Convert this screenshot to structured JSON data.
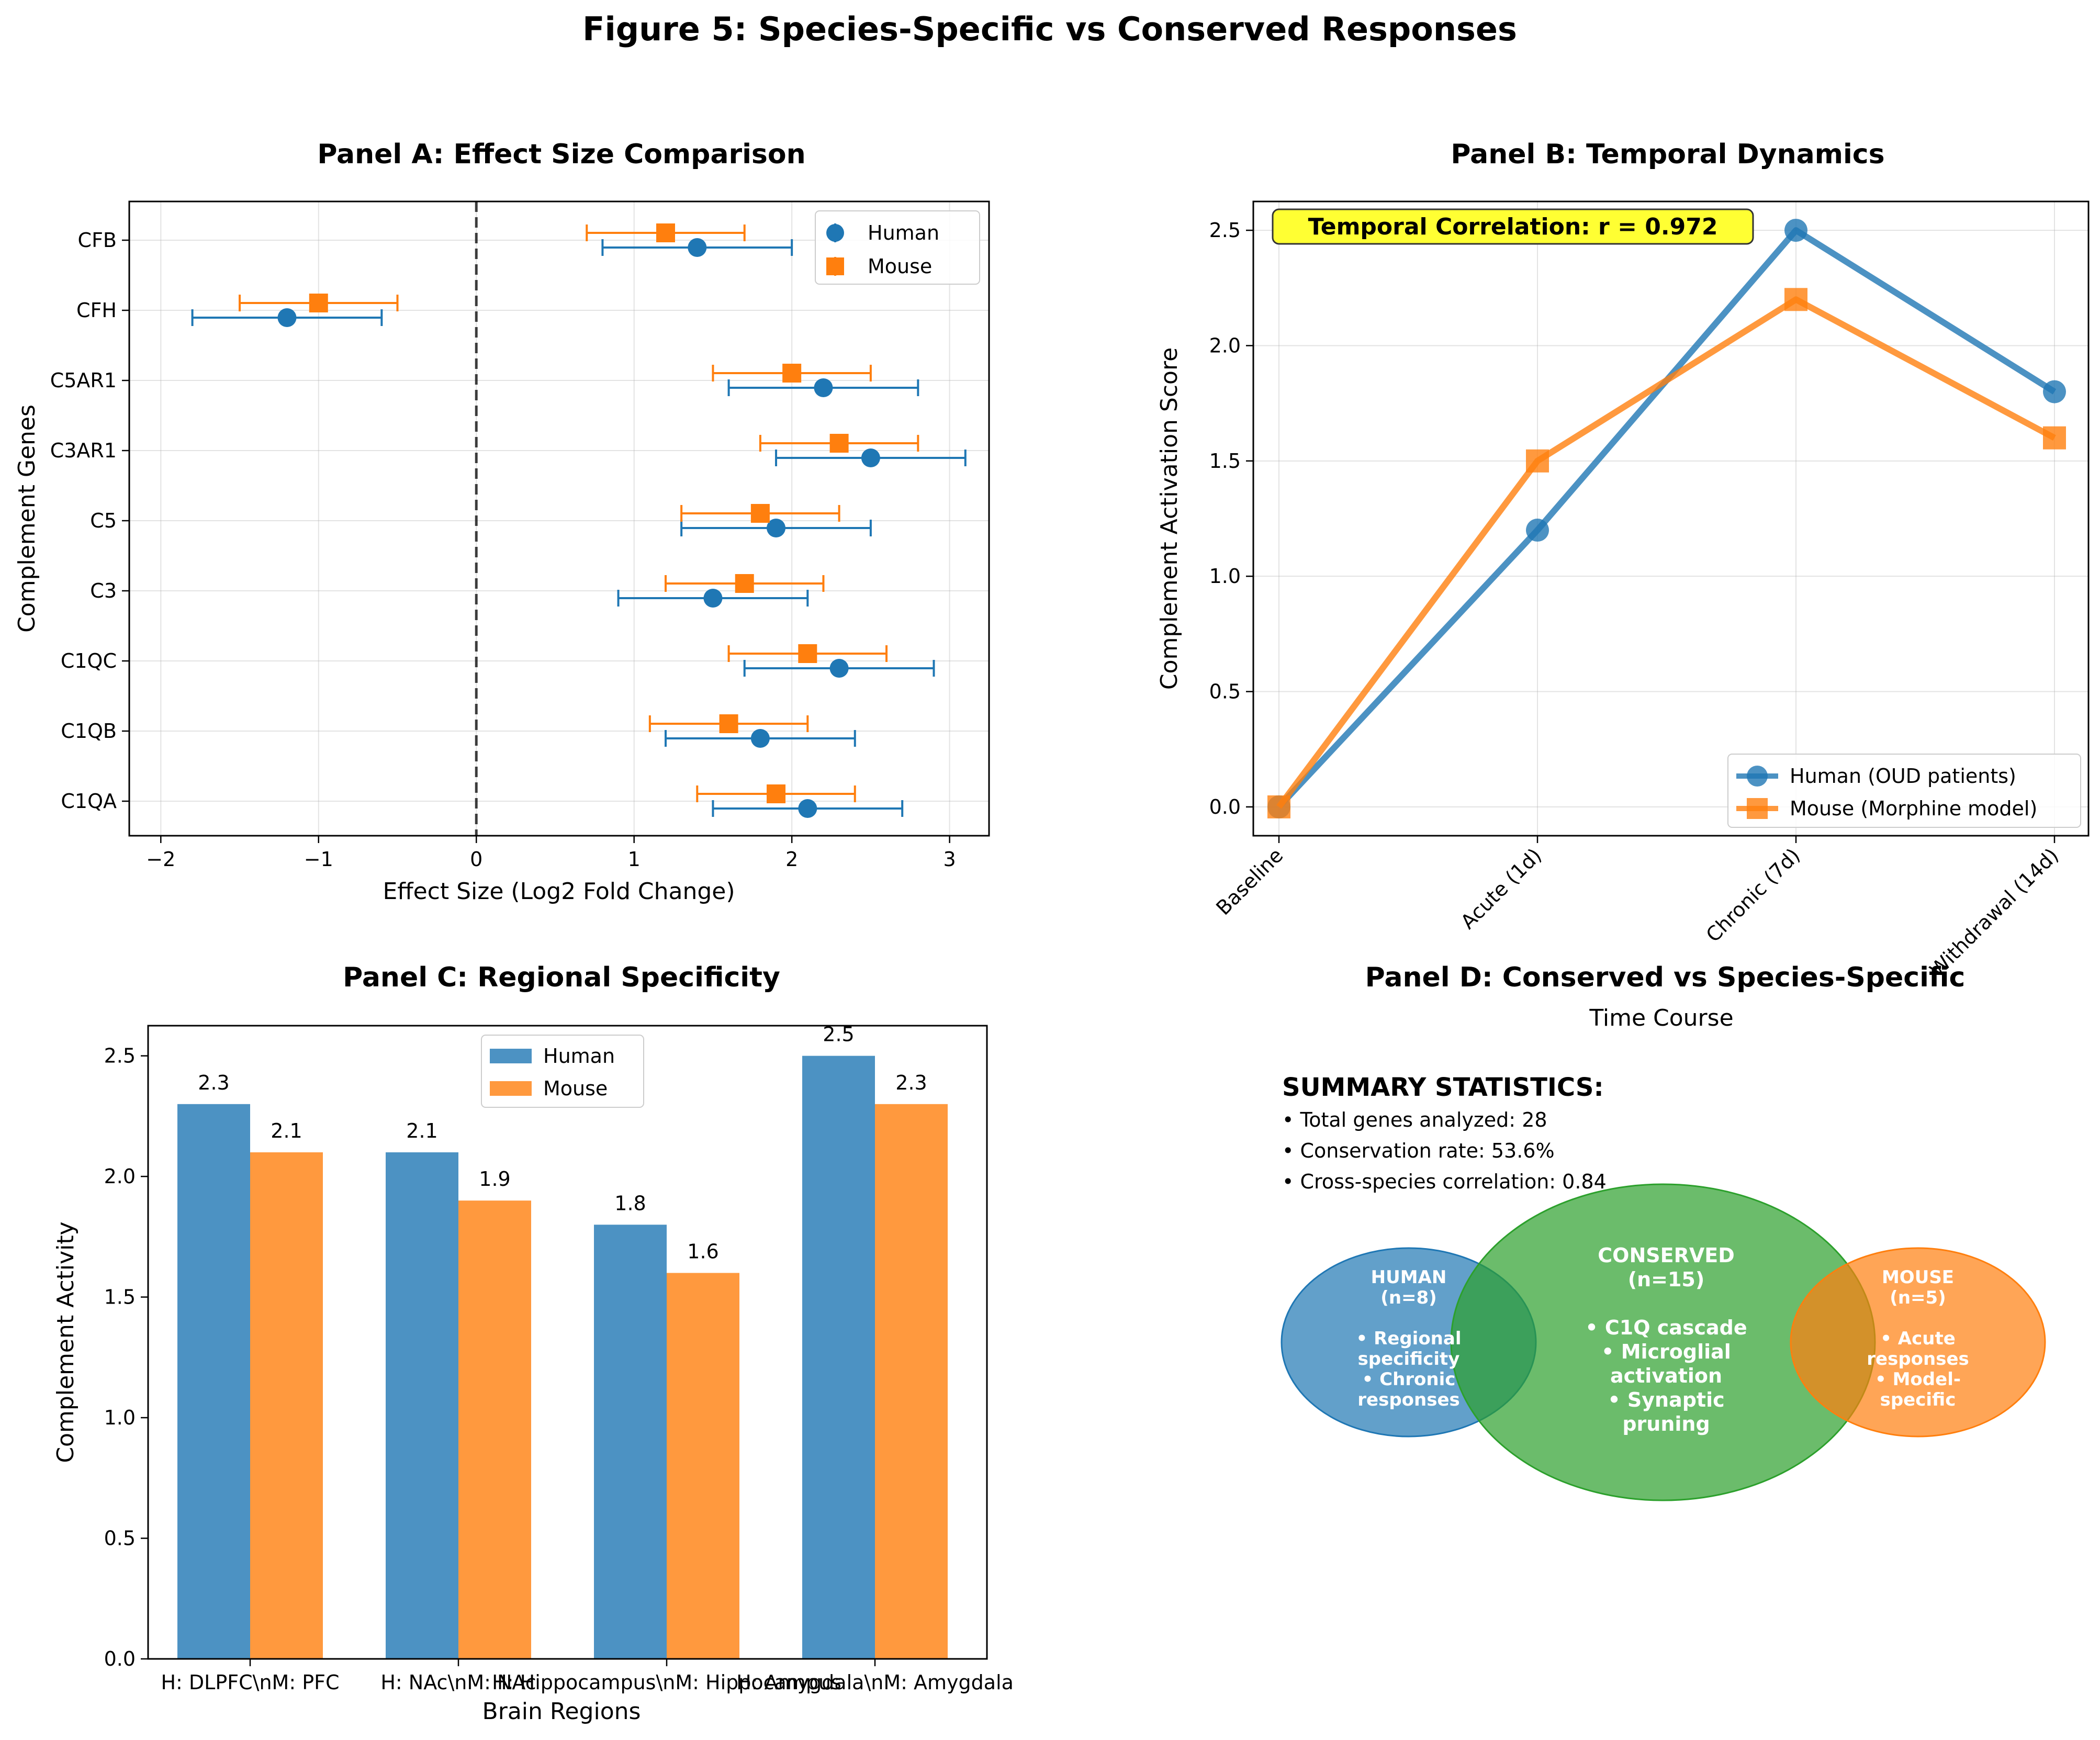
{
  "figure_title": "Figure 5: Species-Specific vs Conserved Responses",
  "colors": {
    "human": "#1f77b4",
    "mouse": "#ff7f0e",
    "conserved": "#2ca02c",
    "highlight": "#ffff33"
  },
  "chart_data": [
    {
      "type": "scatter",
      "panel": "A",
      "title": "Panel A: Effect Size Comparison",
      "xlabel": "Effect Size (Log2 Fold Change)",
      "ylabel": "Complement Genes",
      "xlim": [
        -2.2,
        3.25
      ],
      "xticks": [
        -2,
        -1,
        0,
        1,
        2,
        3
      ],
      "xtick_labels": [
        "−2",
        "−1",
        "0",
        "1",
        "2",
        "3"
      ],
      "categories": [
        "C1QA",
        "C1QB",
        "C1QC",
        "C3",
        "C5",
        "C3AR1",
        "C5AR1",
        "CFH",
        "CFB"
      ],
      "reference_line": 0,
      "grid": true,
      "legend": "top-right",
      "series": [
        {
          "name": "Human",
          "marker": "circle",
          "values": [
            2.1,
            1.8,
            2.3,
            1.5,
            1.9,
            2.5,
            2.2,
            -1.2,
            1.4
          ],
          "error": 0.6
        },
        {
          "name": "Mouse",
          "marker": "square",
          "values": [
            1.9,
            1.6,
            2.1,
            1.7,
            1.8,
            2.3,
            2.0,
            -1.0,
            1.2
          ],
          "error": 0.5
        }
      ]
    },
    {
      "type": "line",
      "panel": "B",
      "title": "Panel B: Temporal Dynamics",
      "xlabel": "Time Course",
      "ylabel": "Complement Activation Score",
      "categories": [
        "Baseline",
        "Acute (1d)",
        "Chronic (7d)",
        "Withdrawal (14d)"
      ],
      "ylim": [
        -0.125,
        2.625
      ],
      "yticks": [
        0.0,
        0.5,
        1.0,
        1.5,
        2.0,
        2.5
      ],
      "ytick_labels": [
        "0.0",
        "0.5",
        "1.0",
        "1.5",
        "2.0",
        "2.5"
      ],
      "annotation": "Temporal Correlation: r = 0.972",
      "grid": true,
      "legend": "bottom-right",
      "series": [
        {
          "name": "Human (OUD patients)",
          "marker": "circle",
          "values": [
            0.0,
            1.2,
            2.5,
            1.8
          ]
        },
        {
          "name": "Mouse (Morphine model)",
          "marker": "square",
          "values": [
            0.0,
            1.5,
            2.2,
            1.6
          ]
        }
      ]
    },
    {
      "type": "bar",
      "panel": "C",
      "title": "Panel C: Regional Specificity",
      "xlabel": "Brain Regions",
      "ylabel": "Complement Activity",
      "categories": [
        "H: DLPFC\\nM: PFC",
        "H: NAc\\nM: NAc",
        "H: Hippocampus\\nM: Hippocampus",
        "H: Amygdala\\nM: Amygdala"
      ],
      "ylim": [
        0,
        2.625
      ],
      "yticks": [
        0.0,
        0.5,
        1.0,
        1.5,
        2.0,
        2.5
      ],
      "ytick_labels": [
        "0.0",
        "0.5",
        "1.0",
        "1.5",
        "2.0",
        "2.5"
      ],
      "legend": "top-center",
      "series": [
        {
          "name": "Human",
          "values": [
            2.3,
            2.1,
            1.8,
            2.5
          ],
          "labels": [
            "2.3",
            "2.1",
            "1.8",
            "2.5"
          ]
        },
        {
          "name": "Mouse",
          "values": [
            2.1,
            1.9,
            1.6,
            2.3
          ],
          "labels": [
            "2.1",
            "1.9",
            "1.6",
            "2.3"
          ]
        }
      ]
    }
  ],
  "panel_d": {
    "title": "Panel D: Conserved vs Species-Specific",
    "summary_heading": "SUMMARY STATISTICS:",
    "summary_lines": [
      "• Total genes analyzed: 28",
      "• Conservation rate: 53.6%",
      "• Cross-species correlation: 0.84"
    ],
    "human": {
      "lines": [
        "HUMAN",
        "(n=8)",
        "",
        "• Regional",
        "specificity",
        "• Chronic",
        "responses"
      ]
    },
    "conserved": {
      "lines": [
        "CONSERVED",
        "(n=15)",
        "",
        "• C1Q cascade",
        "• Microglial",
        "activation",
        "• Synaptic",
        "pruning"
      ]
    },
    "mouse": {
      "lines": [
        "MOUSE",
        "(n=5)",
        "",
        "• Acute",
        "responses",
        "• Model-",
        "specific"
      ]
    }
  }
}
